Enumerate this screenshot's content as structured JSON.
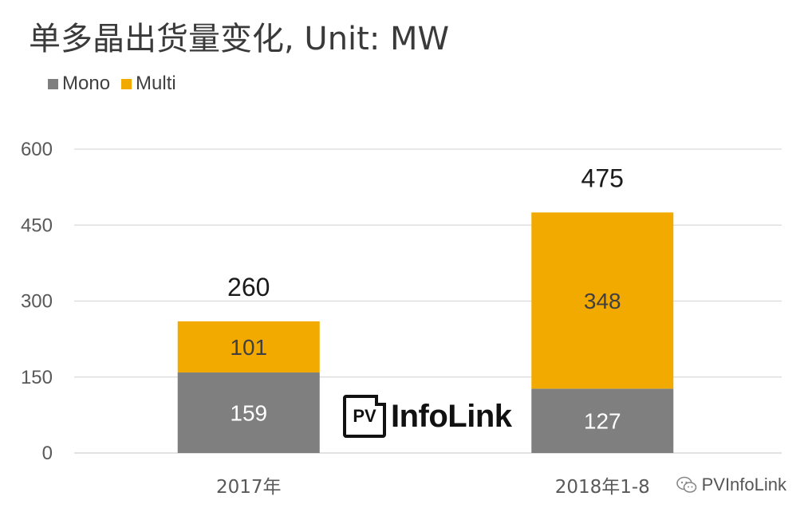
{
  "title": "单多晶出货量变化, Unit: MW",
  "watermark": {
    "logo_text": "InfoLink",
    "logo_badge": "PV",
    "source_label": "PVInfoLink",
    "source_icon": "wechat-icon"
  },
  "colors": {
    "mono": "#7f7f7f",
    "multi": "#f2aa00",
    "grid": "#d9d9d9",
    "axis_text": "#595959"
  },
  "chart_data": {
    "type": "bar",
    "stacked": true,
    "categories": [
      "2017年",
      "2018年1-8"
    ],
    "series": [
      {
        "name": "Mono",
        "values": [
          159,
          127
        ]
      },
      {
        "name": "Multi",
        "values": [
          101,
          348
        ]
      }
    ],
    "totals": [
      260,
      475
    ],
    "title": "单多晶出货量变化, Unit: MW",
    "xlabel": "",
    "ylabel": "",
    "ylim": [
      0,
      600
    ],
    "yticks": [
      0,
      150,
      300,
      450,
      600
    ],
    "grid": true,
    "legend": "top-left"
  }
}
